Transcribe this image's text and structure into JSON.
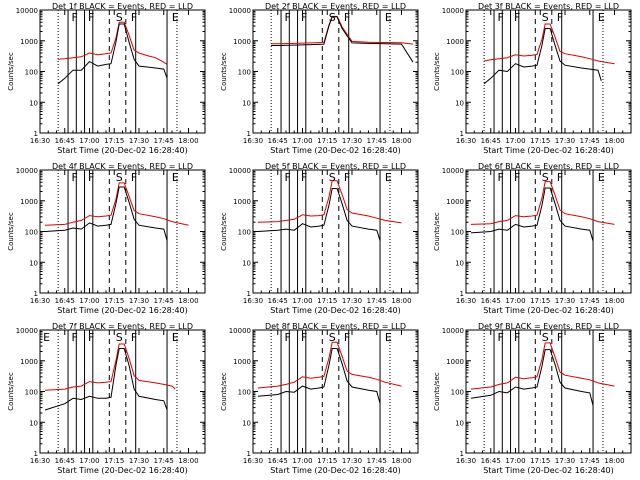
{
  "colors": {
    "events": "#000000",
    "lld": "#e00000",
    "axis": "#000000",
    "background": "#ffffff"
  },
  "chart_data": [
    {
      "type": "line",
      "title": "Det 1f BLACK = Events, RED = LLD",
      "xlabel": "Start Time (20-Dec-02 16:28:40)",
      "ylabel": "Counts/sec",
      "yscale": "log",
      "ylim": [
        1,
        10000
      ],
      "ytick_labels": [
        "1",
        "10",
        "100",
        "1000",
        "10000"
      ],
      "xtick_labels": [
        "16:30",
        "16:45",
        "17:00",
        "17:15",
        "17:30",
        "17:45",
        "18:00"
      ],
      "markers": [
        "F",
        "F",
        "S",
        "F",
        "E"
      ],
      "series": [
        {
          "name": "Events",
          "x": [
            "16:41",
            "16:45",
            "16:50",
            "16:55",
            "17:00",
            "17:05",
            "17:10",
            "17:13",
            "17:16",
            "17:18",
            "17:21",
            "17:24",
            "17:27",
            "17:30",
            "17:35",
            "17:40",
            "17:45",
            "17:47"
          ],
          "values": [
            40,
            60,
            110,
            110,
            210,
            150,
            170,
            180,
            900,
            3500,
            3500,
            900,
            250,
            150,
            140,
            130,
            120,
            60
          ]
        },
        {
          "name": "LLD",
          "x": [
            "16:41",
            "16:45",
            "16:50",
            "16:55",
            "17:00",
            "17:05",
            "17:10",
            "17:13",
            "17:16",
            "17:18",
            "17:21",
            "17:24",
            "17:27",
            "17:30",
            "17:35",
            "17:40",
            "17:45",
            "17:47"
          ],
          "values": [
            250,
            260,
            280,
            300,
            400,
            350,
            380,
            400,
            1200,
            4000,
            4000,
            1500,
            500,
            400,
            330,
            280,
            200,
            170
          ]
        }
      ]
    },
    {
      "type": "line",
      "title": "Det 2f BLACK = Events, RED = LLD",
      "xlabel": "Start Time (20-Dec-02 16:28:40)",
      "ylabel": "Counts/sec",
      "yscale": "log",
      "ylim": [
        1,
        10000
      ],
      "ytick_labels": [
        "1",
        "10",
        "100",
        "1000",
        "10000"
      ],
      "xtick_labels": [
        "16:30",
        "16:45",
        "17:00",
        "17:15",
        "17:30",
        "17:45",
        "18:00"
      ],
      "markers": [
        "F",
        "F",
        "S",
        "F",
        "E"
      ],
      "series": [
        {
          "name": "Events",
          "x": [
            "16:41",
            "16:45",
            "16:55",
            "17:05",
            "17:13",
            "17:16",
            "17:18",
            "17:21",
            "17:24",
            "17:30",
            "17:40",
            "17:50",
            "18:00",
            "18:07"
          ],
          "values": [
            700,
            700,
            720,
            750,
            780,
            3000,
            6000,
            6000,
            2500,
            850,
            820,
            800,
            780,
            200
          ]
        },
        {
          "name": "LLD",
          "x": [
            "16:41",
            "16:45",
            "16:55",
            "17:05",
            "17:13",
            "17:16",
            "17:18",
            "17:21",
            "17:24",
            "17:30",
            "17:40",
            "17:50",
            "18:00",
            "18:07"
          ],
          "values": [
            800,
            800,
            820,
            850,
            880,
            3200,
            6200,
            6200,
            2800,
            950,
            900,
            880,
            860,
            780
          ]
        }
      ]
    },
    {
      "type": "line",
      "title": "Det 3f BLACK = Events, RED = LLD",
      "xlabel": "Start Time (20-Dec-02 16:28:40)",
      "ylabel": "Counts/sec",
      "yscale": "log",
      "ylim": [
        1,
        10000
      ],
      "ytick_labels": [
        "1",
        "10",
        "100",
        "1000",
        "10000"
      ],
      "xtick_labels": [
        "16:30",
        "16:45",
        "17:00",
        "17:15",
        "17:30",
        "17:45",
        "18:00"
      ],
      "markers": [
        "F",
        "F",
        "S",
        "F",
        "E"
      ],
      "series": [
        {
          "name": "Events",
          "x": [
            "16:41",
            "16:45",
            "16:50",
            "16:55",
            "17:00",
            "17:05",
            "17:10",
            "17:13",
            "17:16",
            "17:18",
            "17:21",
            "17:24",
            "17:27",
            "17:30",
            "17:40",
            "17:45",
            "17:50",
            "17:52"
          ],
          "values": [
            40,
            60,
            110,
            100,
            180,
            140,
            150,
            160,
            700,
            2500,
            2500,
            700,
            220,
            160,
            130,
            120,
            110,
            50
          ]
        },
        {
          "name": "LLD",
          "x": [
            "16:41",
            "16:45",
            "16:50",
            "16:55",
            "17:00",
            "17:05",
            "17:10",
            "17:13",
            "17:16",
            "17:18",
            "17:21",
            "17:24",
            "17:27",
            "17:30",
            "17:40",
            "17:45",
            "17:50",
            "18:00"
          ],
          "values": [
            220,
            240,
            260,
            280,
            350,
            320,
            340,
            360,
            1100,
            3500,
            3500,
            1300,
            450,
            380,
            300,
            260,
            220,
            180
          ]
        }
      ]
    },
    {
      "type": "line",
      "title": "Det 4f BLACK = Events, RED = LLD",
      "xlabel": "Start Time (20-Dec-02 16:28:40)",
      "ylabel": "Counts/sec",
      "yscale": "log",
      "ylim": [
        1,
        10000
      ],
      "ytick_labels": [
        "1",
        "10",
        "100",
        "1000",
        "10000"
      ],
      "xtick_labels": [
        "16:30",
        "16:45",
        "17:00",
        "17:15",
        "17:30",
        "17:45",
        "18:00"
      ],
      "markers": [
        "F",
        "F",
        "S",
        "F",
        "E"
      ],
      "series": [
        {
          "name": "Events",
          "x": [
            "16:33",
            "16:45",
            "16:50",
            "16:55",
            "17:00",
            "17:05",
            "17:10",
            "17:13",
            "17:16",
            "17:18",
            "17:21",
            "17:24",
            "17:27",
            "17:30",
            "17:40",
            "17:45",
            "17:47"
          ],
          "values": [
            100,
            110,
            130,
            120,
            190,
            150,
            160,
            170,
            800,
            2800,
            2800,
            900,
            250,
            160,
            130,
            120,
            50
          ]
        },
        {
          "name": "LLD",
          "x": [
            "16:33",
            "16:45",
            "16:50",
            "16:55",
            "17:00",
            "17:05",
            "17:10",
            "17:13",
            "17:16",
            "17:18",
            "17:21",
            "17:24",
            "17:27",
            "17:30",
            "17:40",
            "17:45",
            "17:50",
            "18:00"
          ],
          "values": [
            160,
            170,
            200,
            230,
            330,
            300,
            320,
            340,
            1100,
            3800,
            3800,
            1400,
            480,
            380,
            300,
            260,
            210,
            160
          ]
        }
      ]
    },
    {
      "type": "line",
      "title": "Det 5f BLACK = Events, RED = LLD",
      "xlabel": "Start Time (20-Dec-02 16:28:40)",
      "ylabel": "Counts/sec",
      "yscale": "log",
      "ylim": [
        1,
        10000
      ],
      "ytick_labels": [
        "1",
        "10",
        "100",
        "1000",
        "10000"
      ],
      "xtick_labels": [
        "16:30",
        "16:45",
        "17:00",
        "17:15",
        "17:30",
        "17:45",
        "18:00"
      ],
      "markers": [
        "F",
        "F",
        "S",
        "F",
        "E"
      ],
      "series": [
        {
          "name": "Events",
          "x": [
            "16:33",
            "16:45",
            "16:50",
            "16:55",
            "17:00",
            "17:05",
            "17:10",
            "17:13",
            "17:16",
            "17:18",
            "17:21",
            "17:24",
            "17:27",
            "17:30",
            "17:40",
            "17:45",
            "17:47"
          ],
          "values": [
            100,
            110,
            120,
            110,
            180,
            140,
            150,
            160,
            700,
            2500,
            2500,
            800,
            230,
            150,
            120,
            110,
            50
          ]
        },
        {
          "name": "LLD",
          "x": [
            "16:33",
            "16:45",
            "16:50",
            "16:55",
            "17:00",
            "17:05",
            "17:10",
            "17:13",
            "17:16",
            "17:18",
            "17:21",
            "17:24",
            "17:27",
            "17:30",
            "17:40",
            "17:45",
            "17:50",
            "18:00"
          ],
          "values": [
            200,
            210,
            230,
            250,
            350,
            320,
            330,
            350,
            1300,
            4500,
            4500,
            1600,
            520,
            400,
            320,
            270,
            230,
            190
          ]
        }
      ]
    },
    {
      "type": "line",
      "title": "Det 6f BLACK = Events, RED = LLD",
      "xlabel": "Start Time (20-Dec-02 16:28:40)",
      "ylabel": "Counts/sec",
      "yscale": "log",
      "ylim": [
        1,
        10000
      ],
      "ytick_labels": [
        "1",
        "10",
        "100",
        "1000",
        "10000"
      ],
      "xtick_labels": [
        "16:30",
        "16:45",
        "17:00",
        "17:15",
        "17:30",
        "17:45",
        "18:00"
      ],
      "markers": [
        "F",
        "F",
        "S",
        "F",
        "E"
      ],
      "series": [
        {
          "name": "Events",
          "x": [
            "16:33",
            "16:45",
            "16:50",
            "16:55",
            "17:00",
            "17:05",
            "17:10",
            "17:13",
            "17:16",
            "17:18",
            "17:21",
            "17:24",
            "17:27",
            "17:30",
            "17:40",
            "17:45",
            "17:47"
          ],
          "values": [
            90,
            100,
            120,
            110,
            170,
            140,
            150,
            160,
            700,
            2600,
            2600,
            800,
            230,
            150,
            120,
            110,
            50
          ]
        },
        {
          "name": "LLD",
          "x": [
            "16:33",
            "16:45",
            "16:50",
            "16:55",
            "17:00",
            "17:05",
            "17:10",
            "17:13",
            "17:16",
            "17:18",
            "17:21",
            "17:24",
            "17:27",
            "17:30",
            "17:40",
            "17:45",
            "17:50",
            "18:00"
          ],
          "values": [
            170,
            180,
            210,
            230,
            330,
            300,
            320,
            340,
            1200,
            4200,
            4200,
            1500,
            500,
            380,
            300,
            260,
            210,
            170
          ]
        }
      ]
    },
    {
      "type": "line",
      "title": "Det 7f BLACK = Events, RED = LLD",
      "xlabel": "Start Time (20-Dec-02 16:28:40)",
      "ylabel": "Counts/sec",
      "yscale": "log",
      "ylim": [
        1,
        10000
      ],
      "ytick_labels": [
        "1",
        "10",
        "100",
        "1000",
        "10000"
      ],
      "xtick_labels": [
        "16:30",
        "16:45",
        "17:00",
        "17:15",
        "17:30",
        "17:45",
        "18:00"
      ],
      "markers": [
        "E",
        "F",
        "F",
        "S",
        "F",
        "E"
      ],
      "series": [
        {
          "name": "Events",
          "x": [
            "16:33",
            "16:45",
            "16:50",
            "16:55",
            "17:00",
            "17:05",
            "17:10",
            "17:13",
            "17:16",
            "17:18",
            "17:21",
            "17:24",
            "17:27",
            "17:30",
            "17:40",
            "17:45",
            "17:47"
          ],
          "values": [
            25,
            40,
            60,
            55,
            70,
            60,
            60,
            65,
            700,
            2500,
            2500,
            700,
            120,
            70,
            55,
            50,
            25
          ]
        },
        {
          "name": "LLD",
          "x": [
            "16:33",
            "16:45",
            "16:50",
            "16:55",
            "17:00",
            "17:05",
            "17:10",
            "17:13",
            "17:16",
            "17:18",
            "17:21",
            "17:24",
            "17:27",
            "17:30",
            "17:40",
            "17:45",
            "17:50",
            "17:52"
          ],
          "values": [
            110,
            120,
            140,
            150,
            210,
            190,
            200,
            210,
            1000,
            3500,
            3500,
            1200,
            330,
            230,
            190,
            170,
            150,
            120
          ]
        }
      ]
    },
    {
      "type": "line",
      "title": "Det 8f BLACK = Events, RED = LLD",
      "xlabel": "Start Time (20-Dec-02 16:28:40)",
      "ylabel": "Counts/sec",
      "yscale": "log",
      "ylim": [
        1,
        10000
      ],
      "ytick_labels": [
        "1",
        "10",
        "100",
        "1000",
        "10000"
      ],
      "xtick_labels": [
        "16:30",
        "16:45",
        "17:00",
        "17:15",
        "17:30",
        "17:45",
        "18:00"
      ],
      "markers": [
        "F",
        "F",
        "S",
        "F",
        "E"
      ],
      "series": [
        {
          "name": "Events",
          "x": [
            "16:33",
            "16:45",
            "16:50",
            "16:55",
            "17:00",
            "17:05",
            "17:10",
            "17:13",
            "17:16",
            "17:18",
            "17:21",
            "17:24",
            "17:27",
            "17:30",
            "17:40",
            "17:45",
            "17:47"
          ],
          "values": [
            70,
            80,
            100,
            95,
            150,
            120,
            130,
            140,
            700,
            2500,
            2500,
            800,
            220,
            140,
            110,
            100,
            40
          ]
        },
        {
          "name": "LLD",
          "x": [
            "16:33",
            "16:45",
            "16:50",
            "16:55",
            "17:00",
            "17:05",
            "17:10",
            "17:13",
            "17:16",
            "17:18",
            "17:21",
            "17:24",
            "17:27",
            "17:30",
            "17:40",
            "17:45",
            "17:50",
            "18:00"
          ],
          "values": [
            130,
            150,
            170,
            200,
            300,
            270,
            290,
            310,
            1200,
            4000,
            4000,
            1400,
            460,
            360,
            290,
            250,
            200,
            150
          ]
        }
      ]
    },
    {
      "type": "line",
      "title": "Det 9f BLACK = Events, RED = LLD",
      "xlabel": "Start Time (20-Dec-02 16:28:40)",
      "ylabel": "Counts/sec",
      "yscale": "log",
      "ylim": [
        1,
        10000
      ],
      "ytick_labels": [
        "1",
        "10",
        "100",
        "1000",
        "10000"
      ],
      "xtick_labels": [
        "16:30",
        "16:45",
        "17:00",
        "17:15",
        "17:30",
        "17:45",
        "18:00"
      ],
      "markers": [
        "F",
        "F",
        "S",
        "F",
        "E"
      ],
      "series": [
        {
          "name": "Events",
          "x": [
            "16:33",
            "16:45",
            "16:50",
            "16:55",
            "17:00",
            "17:05",
            "17:10",
            "17:13",
            "17:16",
            "17:18",
            "17:21",
            "17:24",
            "17:27",
            "17:30",
            "17:40",
            "17:45",
            "17:47"
          ],
          "values": [
            60,
            75,
            100,
            90,
            140,
            120,
            130,
            140,
            650,
            2300,
            2300,
            750,
            200,
            130,
            100,
            90,
            35
          ]
        },
        {
          "name": "LLD",
          "x": [
            "16:33",
            "16:45",
            "16:50",
            "16:55",
            "17:00",
            "17:05",
            "17:10",
            "17:13",
            "17:16",
            "17:18",
            "17:21",
            "17:24",
            "17:27",
            "17:30",
            "17:40",
            "17:45",
            "17:50",
            "18:00"
          ],
          "values": [
            120,
            140,
            170,
            190,
            290,
            260,
            280,
            300,
            1100,
            3800,
            3800,
            1300,
            430,
            340,
            270,
            240,
            190,
            150
          ]
        }
      ]
    }
  ]
}
